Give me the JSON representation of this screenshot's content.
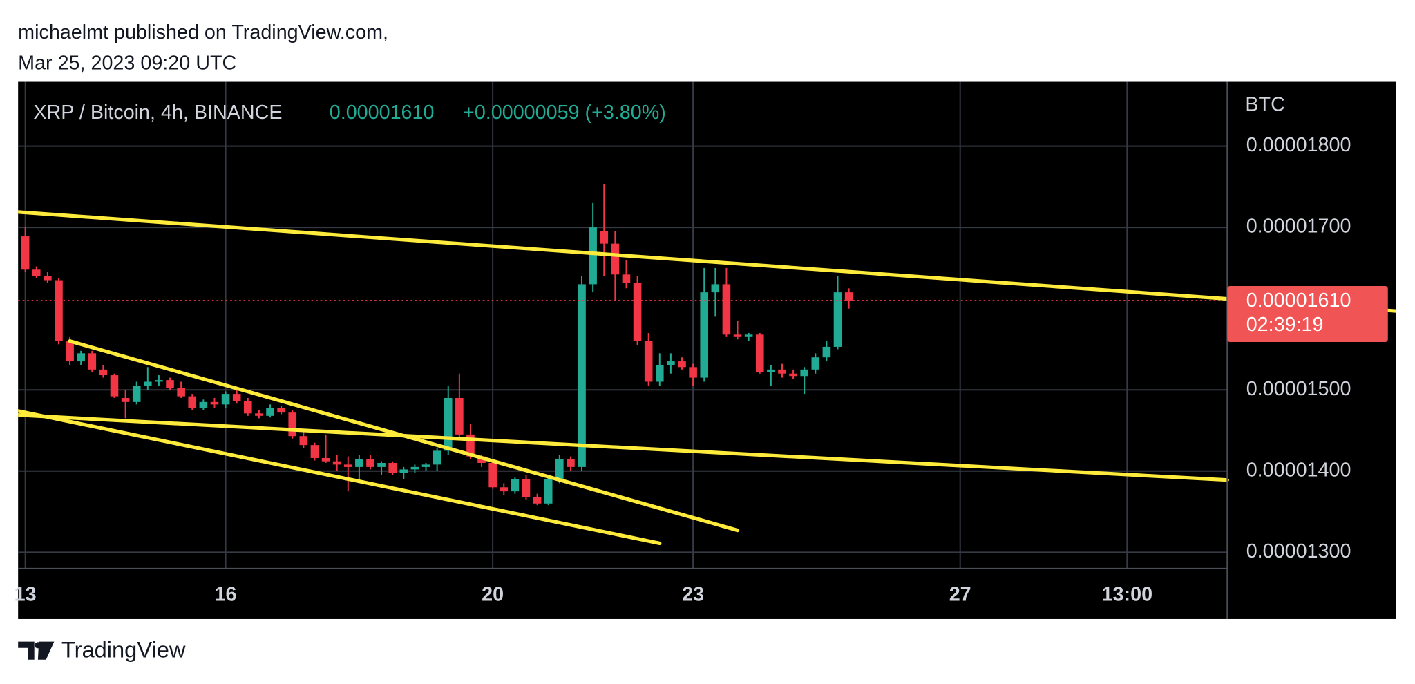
{
  "chart_data": {
    "type": "candlestick",
    "publisher": "michaelmt published on TradingView.com,",
    "published_at": "Mar 25, 2023 09:20 UTC",
    "symbol": "XRP / Bitcoin, 4h, BINANCE",
    "last_text": "0.00001610",
    "change_text": "+0.00000059 (+3.80%)",
    "currency": "BTC",
    "brand": "TradingView",
    "up_color": "#22ab94",
    "down_color": "#f23645",
    "trendline_color": "#ffeb3b",
    "grid": true,
    "xlim": [
      -0.65,
      108
    ],
    "xticks": [
      {
        "value": 0,
        "label": "13"
      },
      {
        "value": 18,
        "label": "16"
      },
      {
        "value": 42,
        "label": "20"
      },
      {
        "value": 60,
        "label": "23"
      },
      {
        "value": 84,
        "label": "27"
      },
      {
        "value": 99,
        "label": "13:00"
      }
    ],
    "ylim": [
      1.28e-05,
      1.88e-05
    ],
    "yticks": [
      {
        "value": 1.3e-05,
        "label": "0.00001300"
      },
      {
        "value": 1.4e-05,
        "label": "0.00001400"
      },
      {
        "value": 1.5e-05,
        "label": "0.00001500"
      },
      {
        "value": 1.7e-05,
        "label": "0.00001700"
      },
      {
        "value": 1.8e-05,
        "label": "0.00001800"
      }
    ],
    "open": [
      1.689e-05,
      1.648e-05,
      1.64e-05,
      1.635e-05,
      1.56e-05,
      1.535e-05,
      1.545e-05,
      1.525e-05,
      1.518e-05,
      1.49e-05,
      1.485e-05,
      1.505e-05,
      1.51e-05,
      1.512e-05,
      1.502e-05,
      1.492e-05,
      1.478e-05,
      1.485e-05,
      1.482e-05,
      1.495e-05,
      1.486e-05,
      1.471e-05,
      1.468e-05,
      1.478e-05,
      1.472e-05,
      1.443e-05,
      1.432e-05,
      1.416e-05,
      1.412e-05,
      1.408e-05,
      1.405e-05,
      1.415e-05,
      1.405e-05,
      1.41e-05,
      1.398e-05,
      1.402e-05,
      1.405e-05,
      1.408e-05,
      1.425e-05,
      1.49e-05,
      1.445e-05,
      1.418e-05,
      1.41e-05,
      1.38e-05,
      1.375e-05,
      1.39e-05,
      1.368e-05,
      1.36e-05,
      1.39e-05,
      1.415e-05,
      1.405e-05,
      1.63e-05,
      1.695e-05,
      1.68e-05,
      1.642e-05,
      1.632e-05,
      1.56e-05,
      1.51e-05,
      1.53e-05,
      1.535e-05,
      1.528e-05,
      1.515e-05,
      1.62e-05,
      1.63e-05,
      1.568e-05,
      1.565e-05,
      1.568e-05,
      1.522e-05,
      1.525e-05,
      1.52e-05,
      1.517e-05,
      1.525e-05,
      1.54e-05,
      1.553e-05,
      1.62e-05
    ],
    "high": [
      1.7e-05,
      1.652e-05,
      1.645e-05,
      1.638e-05,
      1.565e-05,
      1.548e-05,
      1.548e-05,
      1.53e-05,
      1.52e-05,
      1.5e-05,
      1.51e-05,
      1.528e-05,
      1.518e-05,
      1.515e-05,
      1.51e-05,
      1.495e-05,
      1.488e-05,
      1.49e-05,
      1.498e-05,
      1.5e-05,
      1.49e-05,
      1.475e-05,
      1.482e-05,
      1.48e-05,
      1.475e-05,
      1.45e-05,
      1.435e-05,
      1.445e-05,
      1.42e-05,
      1.418e-05,
      1.42e-05,
      1.42e-05,
      1.412e-05,
      1.412e-05,
      1.405e-05,
      1.408e-05,
      1.41e-05,
      1.428e-05,
      1.505e-05,
      1.52e-05,
      1.458e-05,
      1.42e-05,
      1.412e-05,
      1.385e-05,
      1.392e-05,
      1.395e-05,
      1.372e-05,
      1.395e-05,
      1.42e-05,
      1.418e-05,
      1.64e-05,
      1.73e-05,
      1.753e-05,
      1.695e-05,
      1.66e-05,
      1.64e-05,
      1.57e-05,
      1.545e-05,
      1.545e-05,
      1.54e-05,
      1.532e-05,
      1.65e-05,
      1.65e-05,
      1.65e-05,
      1.585e-05,
      1.57e-05,
      1.57e-05,
      1.53e-05,
      1.532e-05,
      1.525e-05,
      1.528e-05,
      1.545e-05,
      1.56e-05,
      1.64e-05,
      1.625e-05
    ],
    "low": [
      1.645e-05,
      1.638e-05,
      1.632e-05,
      1.556e-05,
      1.53e-05,
      1.53e-05,
      1.522e-05,
      1.515e-05,
      1.49e-05,
      1.465e-05,
      1.482e-05,
      1.5e-05,
      1.505e-05,
      1.5e-05,
      1.49e-05,
      1.475e-05,
      1.475e-05,
      1.478e-05,
      1.478e-05,
      1.483e-05,
      1.468e-05,
      1.465e-05,
      1.466e-05,
      1.47e-05,
      1.44e-05,
      1.428e-05,
      1.413e-05,
      1.41e-05,
      1.4e-05,
      1.375e-05,
      1.385e-05,
      1.402e-05,
      1.395e-05,
      1.395e-05,
      1.39e-05,
      1.398e-05,
      1.4e-05,
      1.4e-05,
      1.42e-05,
      1.44e-05,
      1.415e-05,
      1.405e-05,
      1.378e-05,
      1.37e-05,
      1.372e-05,
      1.365e-05,
      1.358e-05,
      1.358e-05,
      1.385e-05,
      1.4e-05,
      1.4e-05,
      1.62e-05,
      1.64e-05,
      1.61e-05,
      1.625e-05,
      1.555e-05,
      1.505e-05,
      1.505e-05,
      1.52e-05,
      1.525e-05,
      1.505e-05,
      1.51e-05,
      1.59e-05,
      1.565e-05,
      1.562e-05,
      1.56e-05,
      1.52e-05,
      1.505e-05,
      1.515e-05,
      1.513e-05,
      1.495e-05,
      1.52e-05,
      1.535e-05,
      1.55e-05,
      1.6e-05
    ],
    "close": [
      1.648e-05,
      1.64e-05,
      1.635e-05,
      1.56e-05,
      1.535e-05,
      1.545e-05,
      1.525e-05,
      1.518e-05,
      1.492e-05,
      1.485e-05,
      1.505e-05,
      1.51e-05,
      1.512e-05,
      1.502e-05,
      1.492e-05,
      1.478e-05,
      1.485e-05,
      1.482e-05,
      1.495e-05,
      1.486e-05,
      1.471e-05,
      1.468e-05,
      1.478e-05,
      1.472e-05,
      1.443e-05,
      1.432e-05,
      1.416e-05,
      1.412e-05,
      1.408e-05,
      1.405e-05,
      1.415e-05,
      1.405e-05,
      1.41e-05,
      1.398e-05,
      1.402e-05,
      1.405e-05,
      1.408e-05,
      1.425e-05,
      1.49e-05,
      1.445e-05,
      1.418e-05,
      1.41e-05,
      1.38e-05,
      1.375e-05,
      1.39e-05,
      1.368e-05,
      1.36e-05,
      1.39e-05,
      1.415e-05,
      1.405e-05,
      1.63e-05,
      1.7e-05,
      1.68e-05,
      1.642e-05,
      1.632e-05,
      1.56e-05,
      1.51e-05,
      1.53e-05,
      1.535e-05,
      1.528e-05,
      1.515e-05,
      1.62e-05,
      1.63e-05,
      1.568e-05,
      1.565e-05,
      1.568e-05,
      1.522e-05,
      1.525e-05,
      1.52e-05,
      1.517e-05,
      1.525e-05,
      1.54e-05,
      1.553e-05,
      1.62e-05,
      1.61e-05
    ],
    "trendlines": [
      {
        "x": [
          -0.65,
          123.2
        ],
        "y": [
          1.719e-05,
          1.597e-05
        ]
      },
      {
        "x": [
          -0.65,
          108
        ],
        "y": [
          1.469e-05,
          1.389e-05
        ]
      },
      {
        "x": [
          4,
          64
        ],
        "y": [
          1.56e-05,
          1.327e-05
        ]
      },
      {
        "x": [
          -0.65,
          57
        ],
        "y": [
          1.474e-05,
          1.311e-05
        ]
      }
    ],
    "last_price": {
      "value": 1.61e-05,
      "label": "0.00001610"
    },
    "countdown": "02:39:19"
  }
}
